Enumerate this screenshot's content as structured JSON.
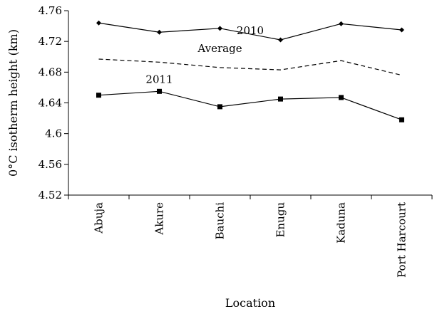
{
  "chart_data": {
    "type": "line",
    "xlabel": "Location",
    "ylabel": "0°C isotherm height (km)",
    "categories": [
      "Abuja",
      "Akure",
      "Bauchi",
      "Enugu",
      "Kaduna",
      "Port Harcourt"
    ],
    "yticks": [
      "4.52",
      "4.56",
      "4.6",
      "4.64",
      "4.68",
      "4.72",
      "4.76"
    ],
    "ylim": [
      4.52,
      4.76
    ],
    "grid": false,
    "series": [
      {
        "name": "2010",
        "marker": "diamond",
        "style": "solid",
        "values": [
          4.744,
          4.732,
          4.737,
          4.722,
          4.743,
          4.735
        ]
      },
      {
        "name": "Average",
        "marker": "none",
        "style": "dashed",
        "values": [
          4.697,
          4.693,
          4.686,
          4.683,
          4.695,
          4.676
        ]
      },
      {
        "name": "2011",
        "marker": "square",
        "style": "solid",
        "values": [
          4.65,
          4.655,
          4.635,
          4.645,
          4.647,
          4.618
        ]
      }
    ]
  }
}
